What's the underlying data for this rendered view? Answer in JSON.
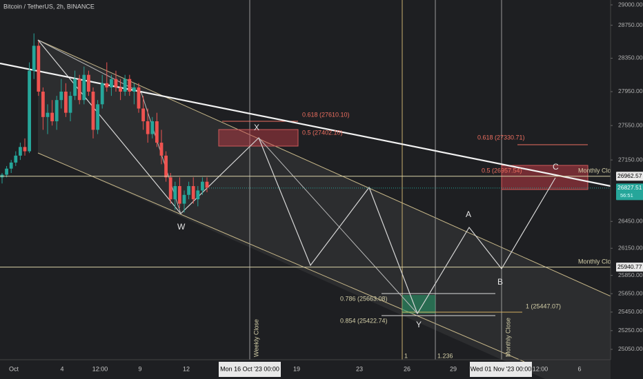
{
  "chart_data": {
    "type": "candlestick",
    "title": "Bitcoin / TetherUS, 2h, BINANCE",
    "log_scale": true,
    "ylim": [
      24940,
      29060
    ],
    "yticks": [
      {
        "value": 29000,
        "label": "29000.00"
      },
      {
        "value": 28750,
        "label": "28750.00"
      },
      {
        "value": 28350,
        "label": "28350.00"
      },
      {
        "value": 27950,
        "label": "27950.00"
      },
      {
        "value": 27550,
        "label": "27550.00"
      },
      {
        "value": 27150,
        "label": "27150.00"
      },
      {
        "value": 26450,
        "label": "26450.00"
      },
      {
        "value": 26150,
        "label": "26150.00"
      },
      {
        "value": 25850,
        "label": "25850.00"
      },
      {
        "value": 25650,
        "label": "25650.00"
      },
      {
        "value": 25450,
        "label": "25450.00"
      },
      {
        "value": 25250,
        "label": "25250.00"
      },
      {
        "value": 25050,
        "label": "25050.00"
      }
    ],
    "xticks": [
      "Oct",
      "4",
      "12:00",
      "9",
      "12",
      "Mon 16 Oct '23  00:00",
      "19",
      "23",
      "26",
      "29",
      "Wed 01 Nov '23  00:00",
      "12:00",
      "6"
    ],
    "up_color": "#26a69a",
    "down_color": "#ef5350",
    "open": [
      26950,
      26980,
      27050,
      27120,
      27200,
      27300,
      27250,
      28200,
      28500,
      27950,
      27650,
      27700,
      27600,
      27850,
      27950,
      27700,
      27900,
      28100,
      27850,
      28150,
      27950,
      27500,
      27800,
      28050,
      28000,
      28100,
      28000,
      27950,
      28100,
      27950,
      28000,
      27750,
      27600,
      27450,
      27600,
      27350,
      27200,
      26950,
      26700,
      26850,
      26650,
      26750,
      26850,
      26700,
      26800,
      26900
    ],
    "high": [
      27000,
      27080,
      27150,
      27250,
      27350,
      27400,
      28300,
      28650,
      28550,
      28000,
      27800,
      27850,
      27900,
      28100,
      28050,
      27950,
      28200,
      28150,
      28250,
      28200,
      28000,
      27850,
      28150,
      28300,
      28150,
      28200,
      28100,
      28150,
      28150,
      28050,
      28050,
      27900,
      27750,
      27650,
      27700,
      27500,
      27250,
      27000,
      26900,
      26950,
      26800,
      26900,
      26950,
      26850,
      26950,
      26950
    ],
    "low": [
      26880,
      26950,
      27000,
      27080,
      27150,
      27200,
      27230,
      28100,
      27900,
      27500,
      27450,
      27550,
      27500,
      27750,
      27650,
      27600,
      27850,
      27800,
      27800,
      27900,
      27400,
      27450,
      27750,
      27950,
      27900,
      27950,
      27850,
      27900,
      27900,
      27800,
      27700,
      27500,
      27350,
      27400,
      27300,
      27100,
      26900,
      26650,
      26580,
      26600,
      26550,
      26700,
      26650,
      26620,
      26750,
      26780
    ],
    "close": [
      26980,
      27050,
      27120,
      27200,
      27300,
      27250,
      28200,
      28500,
      27950,
      27650,
      27700,
      27600,
      27850,
      27950,
      27700,
      27900,
      28100,
      27850,
      28150,
      27950,
      27500,
      27800,
      28050,
      28000,
      28100,
      28000,
      27950,
      28100,
      27950,
      28000,
      27750,
      27600,
      27450,
      27600,
      27350,
      27200,
      26950,
      26700,
      26850,
      26650,
      26750,
      26850,
      26700,
      26800,
      26900,
      26830
    ],
    "price_labels": [
      26962.57,
      26827.51,
      25940.77
    ],
    "countdown": "56:51",
    "annotations": {
      "fib_x_618": "0.618 (27610.10)",
      "fib_x_5": "0.5 (27402.10)",
      "fib_c_618": "0.618 (27330.71)",
      "fib_c_5": "0.5 (26957.54)",
      "fib_786": "0.786 (25663.08)",
      "fib_854": "0.854 (25422.74)",
      "fib_1": "1 (25447.07)",
      "x": "X",
      "w": "W",
      "y": "Y",
      "a": "A",
      "b": "B",
      "c": "C",
      "monthly_close_1": "Monthly Close",
      "monthly_close_2": "Monthly Close",
      "weekly_close_v": "Weekly Close",
      "monthly_close_v": "Monthly Close",
      "ext_1": "1",
      "ext_1236": "1.236"
    }
  }
}
